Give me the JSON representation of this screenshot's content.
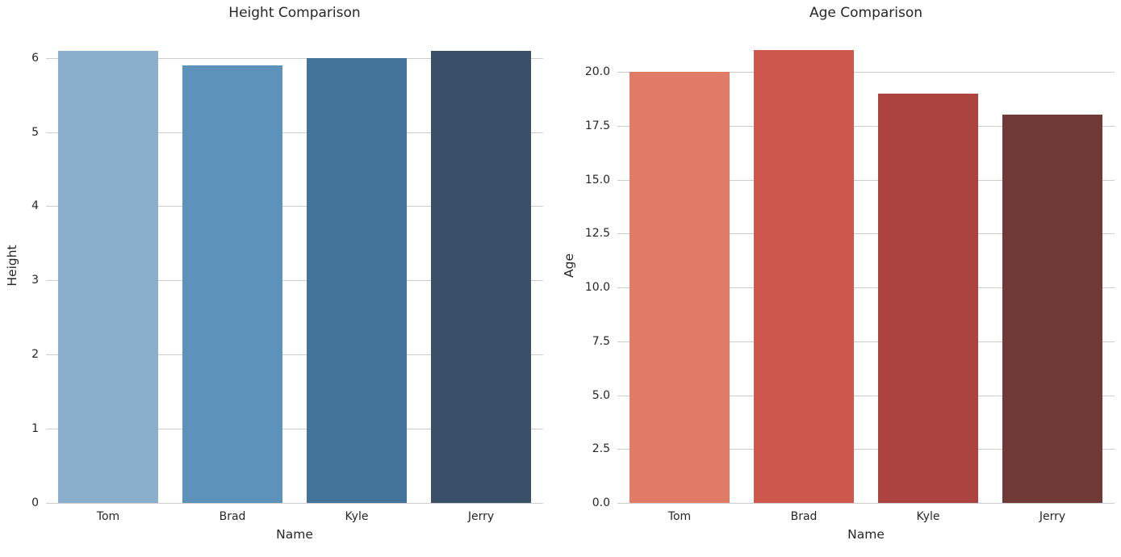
{
  "figure": {
    "background": "#ffffff",
    "text_color": "#262626",
    "grid_color": "#cccccc"
  },
  "chart_data": [
    {
      "type": "bar",
      "title": "Height Comparison",
      "xlabel": "Name",
      "ylabel": "Height",
      "categories": [
        "Tom",
        "Brad",
        "Kyle",
        "Jerry"
      ],
      "values": [
        6.1,
        5.9,
        6.0,
        6.1
      ],
      "bar_colors": [
        "#8AAFCC",
        "#5D93BA",
        "#44739A",
        "#3A5068"
      ],
      "ylim": [
        0,
        6.41
      ],
      "yticks": [
        0,
        1,
        2,
        3,
        4,
        5,
        6
      ],
      "ytick_labels": [
        "0",
        "1",
        "2",
        "3",
        "4",
        "5",
        "6"
      ],
      "grid": true,
      "legend": null,
      "bar_rel_width": 0.8
    },
    {
      "type": "bar",
      "title": "Age Comparison",
      "xlabel": "Name",
      "ylabel": "Age",
      "categories": [
        "Tom",
        "Brad",
        "Kyle",
        "Jerry"
      ],
      "values": [
        20,
        21,
        19,
        18
      ],
      "bar_colors": [
        "#E07B68",
        "#CD564D",
        "#AD433E",
        "#703B37"
      ],
      "ylim": [
        0,
        22.06
      ],
      "yticks": [
        0,
        2.5,
        5,
        7.5,
        10,
        12.5,
        15,
        17.5,
        20
      ],
      "ytick_labels": [
        "0.0",
        "2.5",
        "5.0",
        "7.5",
        "10.0",
        "12.5",
        "15.0",
        "17.5",
        "20.0"
      ],
      "grid": true,
      "legend": null,
      "bar_rel_width": 0.8
    }
  ]
}
